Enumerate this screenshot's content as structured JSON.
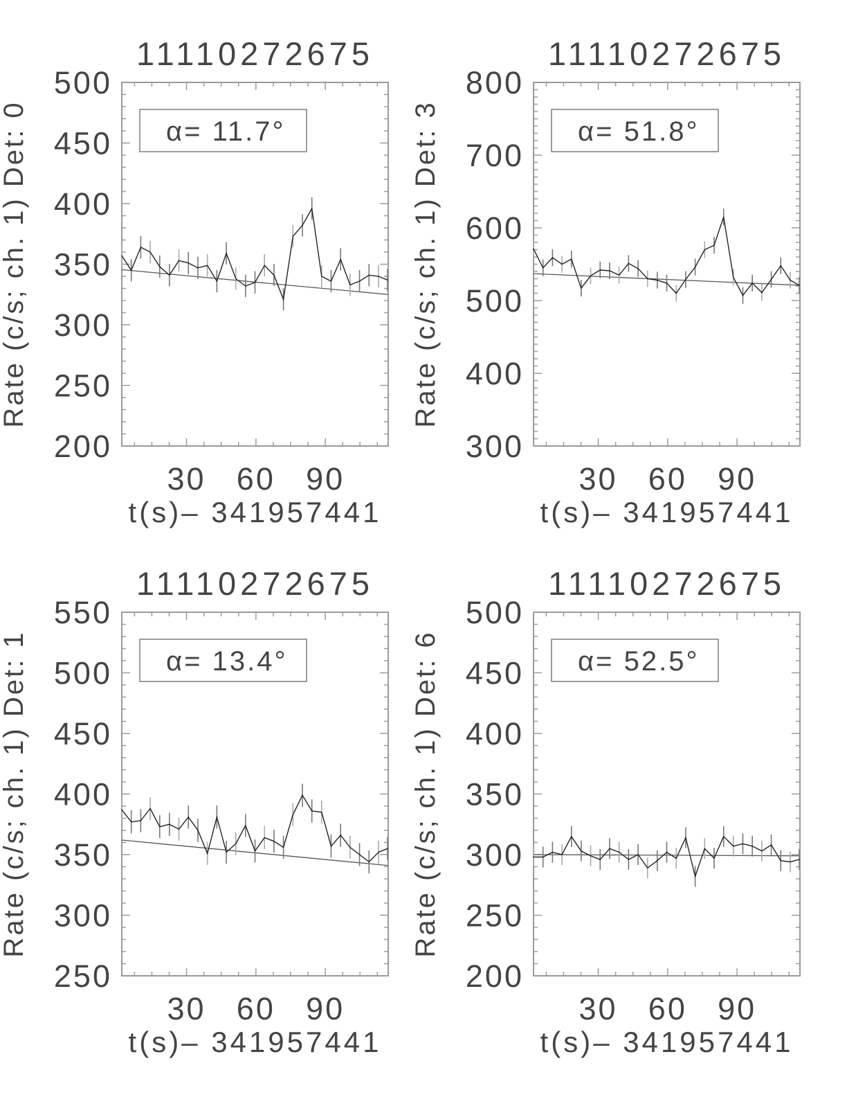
{
  "chart_data": [
    {
      "type": "line",
      "title": "11110272675",
      "ylabel": "Rate (c/s; ch. 1) Det: 0",
      "xlabel": "t(s)– 341957441",
      "legend": "α= 11.7°",
      "xlim": [
        2.0,
        117.2
      ],
      "ylim": [
        200,
        500
      ],
      "xticks": [
        30,
        60,
        90
      ],
      "yticks": [
        200,
        250,
        300,
        350,
        400,
        450,
        500
      ],
      "x": [
        2.0,
        6.1,
        10.2,
        14.3,
        18.4,
        22.6,
        26.7,
        30.8,
        34.9,
        39.0,
        43.1,
        47.2,
        51.3,
        55.5,
        59.6,
        63.7,
        67.8,
        71.9,
        76.0,
        80.1,
        84.2,
        88.4,
        92.5,
        96.6,
        100.7,
        104.8,
        108.9,
        113.0,
        117.1
      ],
      "y": [
        357,
        345,
        364,
        360,
        348,
        341,
        353,
        351,
        347,
        349,
        336,
        359,
        338,
        332,
        335,
        349,
        341,
        321,
        373,
        382,
        396,
        340,
        336,
        354,
        333,
        336,
        341,
        340,
        337
      ],
      "yerr": 9.2,
      "fit": [
        345.5,
        325
      ]
    },
    {
      "type": "line",
      "title": "11110272675",
      "ylabel": "Rate (c/s; ch. 1) Det: 3",
      "xlabel": "t(s)– 341957441",
      "legend": "α= 51.8°",
      "xlim": [
        2.0,
        117.2
      ],
      "ylim": [
        300,
        800
      ],
      "xticks": [
        30,
        60,
        90
      ],
      "yticks": [
        300,
        400,
        500,
        600,
        700,
        800
      ],
      "x": [
        2.0,
        6.1,
        10.2,
        14.3,
        18.4,
        22.6,
        26.7,
        30.8,
        34.9,
        39.0,
        43.1,
        47.2,
        51.3,
        55.5,
        59.6,
        63.7,
        67.8,
        71.9,
        76.0,
        80.1,
        84.2,
        88.4,
        92.5,
        96.6,
        100.7,
        104.8,
        108.9,
        113.0,
        117.1
      ],
      "y": [
        571,
        545,
        559,
        550,
        557,
        517,
        534,
        542,
        541,
        535,
        551,
        544,
        530,
        528,
        524,
        510,
        529,
        546,
        570,
        576,
        615,
        532,
        507,
        524,
        511,
        529,
        548,
        528,
        521
      ],
      "yerr": 11.5,
      "fit": [
        537,
        521
      ]
    },
    {
      "type": "line",
      "title": "11110272675",
      "ylabel": "Rate (c/s; ch. 1) Det: 1",
      "xlabel": "t(s)– 341957441",
      "legend": "α= 13.4°",
      "xlim": [
        2.0,
        117.2
      ],
      "ylim": [
        250,
        550
      ],
      "xticks": [
        30,
        60,
        90
      ],
      "yticks": [
        250,
        300,
        350,
        400,
        450,
        500,
        550
      ],
      "x": [
        2.0,
        6.1,
        10.2,
        14.3,
        18.4,
        22.6,
        26.7,
        30.8,
        34.9,
        39.0,
        43.1,
        47.2,
        51.3,
        55.5,
        59.6,
        63.7,
        67.8,
        71.9,
        76.0,
        80.1,
        84.2,
        88.4,
        92.5,
        96.6,
        100.7,
        104.8,
        108.9,
        113.0,
        117.1
      ],
      "y": [
        387,
        377,
        378,
        388,
        373,
        375,
        371,
        381,
        370,
        351,
        381,
        352,
        359,
        374,
        353,
        364,
        361,
        356,
        383,
        399,
        386,
        385,
        357,
        366,
        356,
        350,
        344,
        352,
        355
      ],
      "yerr": 9.5,
      "fit": [
        362,
        341
      ]
    },
    {
      "type": "line",
      "title": "11110272675",
      "ylabel": "Rate (c/s; ch. 1) Det: 6",
      "xlabel": "t(s)– 341957441",
      "legend": "α= 52.5°",
      "xlim": [
        2.0,
        117.2
      ],
      "ylim": [
        200,
        500
      ],
      "xticks": [
        30,
        60,
        90
      ],
      "yticks": [
        200,
        250,
        300,
        350,
        400,
        450,
        500
      ],
      "x": [
        2.0,
        6.1,
        10.2,
        14.3,
        18.4,
        22.6,
        26.7,
        30.8,
        34.9,
        39.0,
        43.1,
        47.2,
        51.3,
        55.5,
        59.6,
        63.7,
        67.8,
        71.9,
        76.0,
        80.1,
        84.2,
        88.4,
        92.5,
        96.6,
        100.7,
        104.8,
        108.9,
        113.0,
        117.1
      ],
      "y": [
        298,
        298,
        302,
        300,
        315,
        303,
        299,
        296,
        305,
        302,
        296,
        300,
        289,
        295,
        302,
        297,
        314,
        282,
        305,
        297,
        315,
        307,
        309,
        307,
        303,
        308,
        295,
        294,
        296
      ],
      "yerr": 8.6,
      "fit": [
        300,
        299
      ]
    }
  ],
  "colors": {
    "axis": "#9a9a9a",
    "line": "#222222",
    "errorbar": "#777777",
    "fit": "#555555",
    "text": "#444444"
  }
}
